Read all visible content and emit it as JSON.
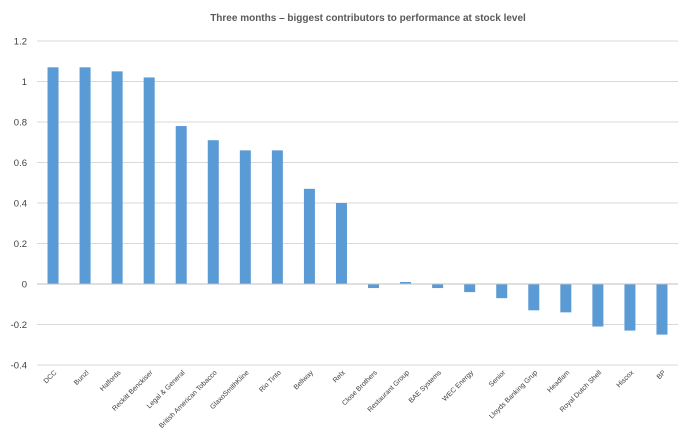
{
  "chart_data": {
    "type": "bar",
    "title": "Three months – biggest contributors to performance at stock level",
    "xlabel": "",
    "ylabel": "",
    "ylim": [
      -0.4,
      1.2
    ],
    "yticks": [
      1.2,
      1,
      0.8,
      0.6,
      0.4,
      0.2,
      0,
      -0.2,
      -0.4
    ],
    "ytick_labels": [
      "1.2",
      "1",
      "0.8",
      "0.6",
      "0.4",
      "0.2",
      "0",
      "-0.2",
      "-0.4"
    ],
    "grid": true,
    "legend": "none",
    "bar_color": "#5b9bd5",
    "categories": [
      "DCC",
      "Bunzl",
      "Halfords",
      "Reckitt Benckiser",
      "Legal & General",
      "British American Tobacco",
      "GlaxoSmithKline",
      "Rio Tinto",
      "Bellway",
      "Relx",
      "Close Brothers",
      "Restaurant Group",
      "BAE Systems",
      "WEC Energy",
      "Senior",
      "Lloyds Banking Grup",
      "Headlam",
      "Royal Dutch Shell",
      "Hiscox",
      "BP"
    ],
    "values": [
      1.07,
      1.07,
      1.05,
      1.02,
      0.78,
      0.71,
      0.66,
      0.66,
      0.47,
      0.4,
      -0.02,
      0.01,
      -0.02,
      -0.04,
      -0.07,
      -0.13,
      -0.14,
      -0.21,
      -0.23,
      -0.25
    ]
  }
}
